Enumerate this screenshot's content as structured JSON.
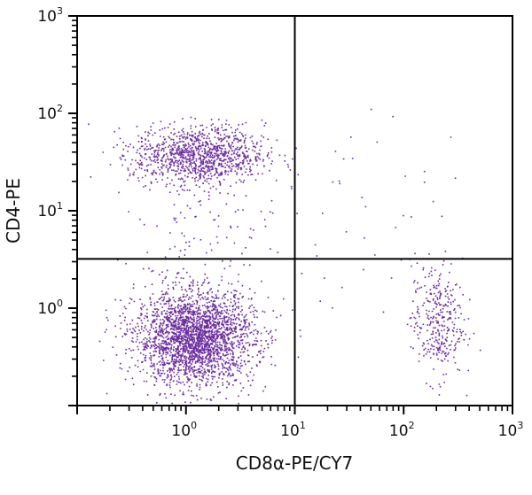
{
  "chart_data": {
    "type": "scatter",
    "subtype": "flow-cytometry-dot-plot",
    "title": "",
    "xlabel": "CD8α-PE/CY7",
    "ylabel": "CD4-PE",
    "xscale": "log",
    "yscale": "log",
    "xlim": [
      0.1,
      1000
    ],
    "ylim": [
      0.1,
      1000
    ],
    "x_ticks": [
      {
        "value": 1,
        "base": "10",
        "exp": "0"
      },
      {
        "value": 10,
        "base": "10",
        "exp": "1"
      },
      {
        "value": 100,
        "base": "10",
        "exp": "2"
      },
      {
        "value": 1000,
        "base": "10",
        "exp": "3"
      }
    ],
    "y_ticks": [
      {
        "value": 1,
        "base": "10",
        "exp": "0"
      },
      {
        "value": 10,
        "base": "10",
        "exp": "1"
      },
      {
        "value": 100,
        "base": "10",
        "exp": "2"
      },
      {
        "value": 1000,
        "base": "10",
        "exp": "3"
      }
    ],
    "quadrant_gate": {
      "x": 10,
      "y": 3.2
    },
    "grid": false,
    "legend": null,
    "dot_color": "#5b1592",
    "populations": [
      {
        "name": "CD4-CD8- (lower-left)",
        "center_x": 1.2,
        "center_y": 0.5,
        "log_sd_x": 0.27,
        "log_sd_y": 0.24,
        "count": 2600
      },
      {
        "name": "CD4+CD8- (upper-left)",
        "center_x": 1.3,
        "center_y": 38,
        "log_sd_x": 0.3,
        "log_sd_y": 0.15,
        "count": 1100
      },
      {
        "name": "CD4+ tail (upper-left, descending)",
        "center_x": 1.6,
        "center_y": 8,
        "log_sd_x": 0.3,
        "log_sd_y": 0.3,
        "count": 90
      },
      {
        "name": "CD8+ (lower-right)",
        "center_x": 200,
        "center_y": 0.75,
        "log_sd_x": 0.12,
        "log_sd_y": 0.3,
        "count": 340
      },
      {
        "name": "CD4+CD8+ (upper-right, sparse)",
        "center_x": 60,
        "center_y": 15,
        "log_sd_x": 0.45,
        "log_sd_y": 0.4,
        "count": 30
      },
      {
        "name": "background scatter",
        "center_x": 3,
        "center_y": 2,
        "log_sd_x": 0.8,
        "log_sd_y": 0.6,
        "count": 60
      }
    ]
  },
  "axes": {
    "x_title": "CD8α-PE/CY7",
    "y_title": "CD4-PE"
  }
}
